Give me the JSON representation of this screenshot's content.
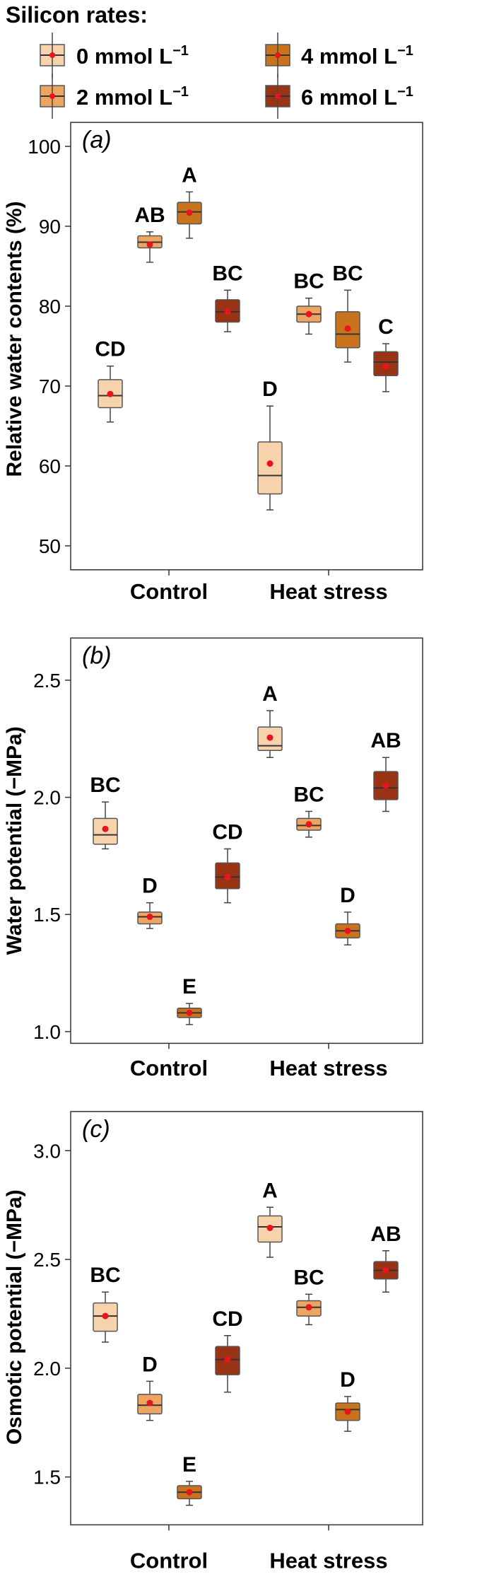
{
  "legend": {
    "title": "Silicon rates:",
    "items": [
      {
        "label": "0 mmol L",
        "sup": "−1",
        "color": "#f7d3ab"
      },
      {
        "label": "4 mmol L",
        "sup": "−1",
        "color": "#c9731d"
      },
      {
        "label": "2 mmol L",
        "sup": "−1",
        "color": "#eda564"
      },
      {
        "label": "6 mmol L",
        "sup": "−1",
        "color": "#9a3214"
      }
    ]
  },
  "colors": {
    "border": "#555555",
    "whisker": "#444444",
    "mean_dot": "#e8141e"
  },
  "chart_data": [
    {
      "type": "box",
      "panel": "(a)",
      "panel_letter": "a",
      "ylabel": "Relative water contents (%)",
      "ylim": [
        47,
        103
      ],
      "yticks": [
        50,
        60,
        70,
        80,
        90,
        100
      ],
      "categories": [
        "Control",
        "Heat stress"
      ],
      "boxes": [
        {
          "category": "Control",
          "series": "0 mmol L−1",
          "color": "#f7d3ab",
          "min": 65.5,
          "q1": 67.3,
          "median": 68.8,
          "q3": 70.8,
          "max": 72.5,
          "mean": 69.0,
          "letter": "CD"
        },
        {
          "category": "Control",
          "series": "2 mmol L−1",
          "color": "#eda564",
          "min": 85.5,
          "q1": 87.3,
          "median": 88.0,
          "q3": 88.8,
          "max": 89.3,
          "mean": 87.7,
          "letter": "AB"
        },
        {
          "category": "Control",
          "series": "4 mmol L−1",
          "color": "#c9731d",
          "min": 88.5,
          "q1": 90.3,
          "median": 91.8,
          "q3": 93.0,
          "max": 94.3,
          "mean": 91.7,
          "letter": "A"
        },
        {
          "category": "Control",
          "series": "6 mmol L−1",
          "color": "#9a3214",
          "min": 76.8,
          "q1": 78.0,
          "median": 79.3,
          "q3": 80.8,
          "max": 82.0,
          "mean": 79.3,
          "letter": "BC"
        },
        {
          "category": "Heat stress",
          "series": "0 mmol L−1",
          "color": "#f7d3ab",
          "min": 54.5,
          "q1": 56.5,
          "median": 58.8,
          "q3": 63.0,
          "max": 67.5,
          "mean": 60.3,
          "letter": "D"
        },
        {
          "category": "Heat stress",
          "series": "2 mmol L−1",
          "color": "#eda564",
          "min": 76.5,
          "q1": 78.0,
          "median": 79.0,
          "q3": 80.0,
          "max": 81.0,
          "mean": 79.0,
          "letter": "BC"
        },
        {
          "category": "Heat stress",
          "series": "4 mmol L−1",
          "color": "#c9731d",
          "min": 73.0,
          "q1": 74.8,
          "median": 76.5,
          "q3": 79.3,
          "max": 82.0,
          "mean": 77.2,
          "letter": "BC"
        },
        {
          "category": "Heat stress",
          "series": "6 mmol L−1",
          "color": "#9a3214",
          "min": 69.3,
          "q1": 71.3,
          "median": 73.0,
          "q3": 74.3,
          "max": 75.3,
          "mean": 72.5,
          "letter": "C"
        }
      ]
    },
    {
      "type": "box",
      "panel": "(b)",
      "panel_letter": "b",
      "ylabel": "Water potential (−MPa)",
      "ylim": [
        0.95,
        2.68
      ],
      "yticks": [
        1.0,
        1.5,
        2.0,
        2.5
      ],
      "yticklabels": [
        "1.0",
        "1.5",
        "2.0",
        "2.5"
      ],
      "categories": [
        "Control",
        "Heat stress"
      ],
      "boxes": [
        {
          "category": "Control",
          "series": "0 mmol L−1",
          "color": "#f7d3ab",
          "min": 1.78,
          "q1": 1.8,
          "median": 1.84,
          "q3": 1.91,
          "max": 1.98,
          "mean": 1.865,
          "letter": "BC"
        },
        {
          "category": "Control",
          "series": "2 mmol L−1",
          "color": "#eda564",
          "min": 1.44,
          "q1": 1.46,
          "median": 1.49,
          "q3": 1.51,
          "max": 1.55,
          "mean": 1.49,
          "letter": "D"
        },
        {
          "category": "Control",
          "series": "4 mmol L−1",
          "color": "#c9731d",
          "min": 1.03,
          "q1": 1.06,
          "median": 1.08,
          "q3": 1.1,
          "max": 1.12,
          "mean": 1.08,
          "letter": "E"
        },
        {
          "category": "Control",
          "series": "6 mmol L−1",
          "color": "#9a3214",
          "min": 1.55,
          "q1": 1.61,
          "median": 1.66,
          "q3": 1.72,
          "max": 1.78,
          "mean": 1.66,
          "letter": "CD"
        },
        {
          "category": "Heat stress",
          "series": "0 mmol L−1",
          "color": "#f7d3ab",
          "min": 2.17,
          "q1": 2.2,
          "median": 2.22,
          "q3": 2.3,
          "max": 2.37,
          "mean": 2.255,
          "letter": "A"
        },
        {
          "category": "Heat stress",
          "series": "2 mmol L−1",
          "color": "#eda564",
          "min": 1.83,
          "q1": 1.86,
          "median": 1.88,
          "q3": 1.91,
          "max": 1.94,
          "mean": 1.885,
          "letter": "BC"
        },
        {
          "category": "Heat stress",
          "series": "4 mmol L−1",
          "color": "#c9731d",
          "min": 1.37,
          "q1": 1.4,
          "median": 1.43,
          "q3": 1.46,
          "max": 1.51,
          "mean": 1.43,
          "letter": "D"
        },
        {
          "category": "Heat stress",
          "series": "6 mmol L−1",
          "color": "#9a3214",
          "min": 1.94,
          "q1": 1.99,
          "median": 2.04,
          "q3": 2.11,
          "max": 2.17,
          "mean": 2.05,
          "letter": "AB"
        }
      ]
    },
    {
      "type": "box",
      "panel": "(c)",
      "panel_letter": "c",
      "ylabel": "Osmotic potential (−MPa)",
      "ylim": [
        1.28,
        3.18
      ],
      "yticks": [
        1.5,
        2.0,
        2.5,
        3.0
      ],
      "yticklabels": [
        "1.5",
        "2.0",
        "2.5",
        "3.0"
      ],
      "categories": [
        "Control",
        "Heat stress"
      ],
      "boxes": [
        {
          "category": "Control",
          "series": "0 mmol L−1",
          "color": "#f7d3ab",
          "min": 2.12,
          "q1": 2.17,
          "median": 2.24,
          "q3": 2.3,
          "max": 2.35,
          "mean": 2.24,
          "letter": "BC"
        },
        {
          "category": "Control",
          "series": "2 mmol L−1",
          "color": "#eda564",
          "min": 1.76,
          "q1": 1.79,
          "median": 1.83,
          "q3": 1.88,
          "max": 1.94,
          "mean": 1.84,
          "letter": "D"
        },
        {
          "category": "Control",
          "series": "4 mmol L−1",
          "color": "#c9731d",
          "min": 1.37,
          "q1": 1.4,
          "median": 1.43,
          "q3": 1.46,
          "max": 1.48,
          "mean": 1.43,
          "letter": "E"
        },
        {
          "category": "Control",
          "series": "6 mmol L−1",
          "color": "#9a3214",
          "min": 1.89,
          "q1": 1.97,
          "median": 2.04,
          "q3": 2.1,
          "max": 2.15,
          "mean": 2.04,
          "letter": "CD"
        },
        {
          "category": "Heat stress",
          "series": "0 mmol L−1",
          "color": "#f7d3ab",
          "min": 2.51,
          "q1": 2.58,
          "median": 2.65,
          "q3": 2.7,
          "max": 2.74,
          "mean": 2.645,
          "letter": "A"
        },
        {
          "category": "Heat stress",
          "series": "2 mmol L−1",
          "color": "#eda564",
          "min": 2.2,
          "q1": 2.24,
          "median": 2.28,
          "q3": 2.31,
          "max": 2.34,
          "mean": 2.28,
          "letter": "BC"
        },
        {
          "category": "Heat stress",
          "series": "4 mmol L−1",
          "color": "#c9731d",
          "min": 1.71,
          "q1": 1.76,
          "median": 1.81,
          "q3": 1.84,
          "max": 1.87,
          "mean": 1.8,
          "letter": "D"
        },
        {
          "category": "Heat stress",
          "series": "6 mmol L−1",
          "color": "#9a3214",
          "min": 2.35,
          "q1": 2.41,
          "median": 2.45,
          "q3": 2.49,
          "max": 2.54,
          "mean": 2.45,
          "letter": "AB"
        }
      ]
    }
  ]
}
